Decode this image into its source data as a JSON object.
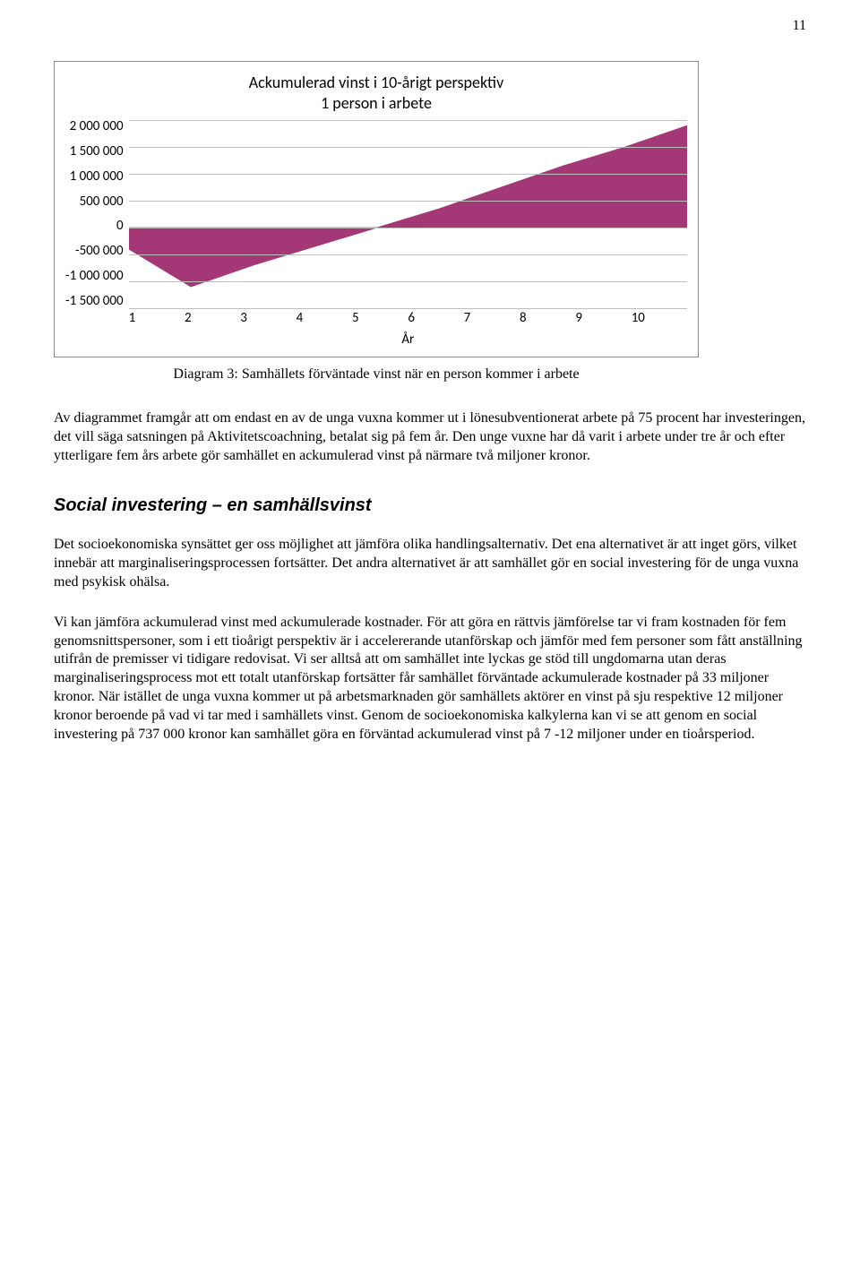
{
  "page_number": "11",
  "chart": {
    "type": "area",
    "title_line1": "Ackumulerad vinst i 10-årigt perspektiv",
    "title_line2": "1 person i arbete",
    "y_ticks": [
      "2 000 000",
      "1 500 000",
      "1 000 000",
      "500 000",
      "0",
      "-500 000",
      "-1 000 000",
      "-1 500 000"
    ],
    "x_ticks": [
      "1",
      "2",
      "3",
      "4",
      "5",
      "6",
      "7",
      "8",
      "9",
      "10"
    ],
    "x_label": "År",
    "y_min": -1500000,
    "y_max": 2000000,
    "values": [
      -400000,
      -1100000,
      -700000,
      -350000,
      0,
      350000,
      750000,
      1150000,
      1500000,
      1900000
    ],
    "fill_color": "#a43876",
    "grid_color": "#bfbfbf",
    "background_color": "#ffffff"
  },
  "caption": "Diagram 3: Samhällets förväntade vinst när en person kommer i arbete",
  "para1": "Av diagrammet framgår att om endast en av de unga vuxna kommer ut i lönesubventionerat arbete på 75 procent har investeringen, det vill säga satsningen på Aktivitetscoachning, betalat sig på fem år. Den unge vuxne har då varit i arbete under tre år och efter ytterligare fem års arbete gör samhället en ackumulerad vinst på närmare två miljoner kronor.",
  "heading": "Social investering – en samhällsvinst",
  "para2": "Det socioekonomiska synsättet ger oss möjlighet att jämföra olika handlingsalternativ. Det ena alternativet är att inget görs, vilket innebär att marginaliseringsprocessen fortsätter. Det andra alternativet är att samhället gör en social investering för de unga vuxna med psykisk ohälsa.",
  "para3": "Vi kan jämföra ackumulerad vinst med ackumulerade kostnader. För att göra en rättvis jämförelse tar vi fram kostnaden för fem genomsnittspersoner, som i ett tioårigt perspektiv är i accelererande utanförskap och jämför med fem personer som fått anställning utifrån de premisser vi tidigare redovisat. Vi ser alltså att om samhället inte lyckas ge stöd till ungdomarna utan deras marginaliseringsprocess mot ett totalt utanförskap fortsätter får samhället förväntade ackumulerade kostnader på 33 miljoner kronor. När istället de unga vuxna kommer ut på arbetsmarknaden gör samhällets aktörer en vinst på sju respektive 12 miljoner kronor beroende på vad vi tar med i samhällets vinst. Genom de socioekonomiska kalkylerna kan vi se att genom en social investering på 737 000 kronor kan samhället göra en förväntad ackumulerad vinst på 7 -12 miljoner under en tioårsperiod."
}
